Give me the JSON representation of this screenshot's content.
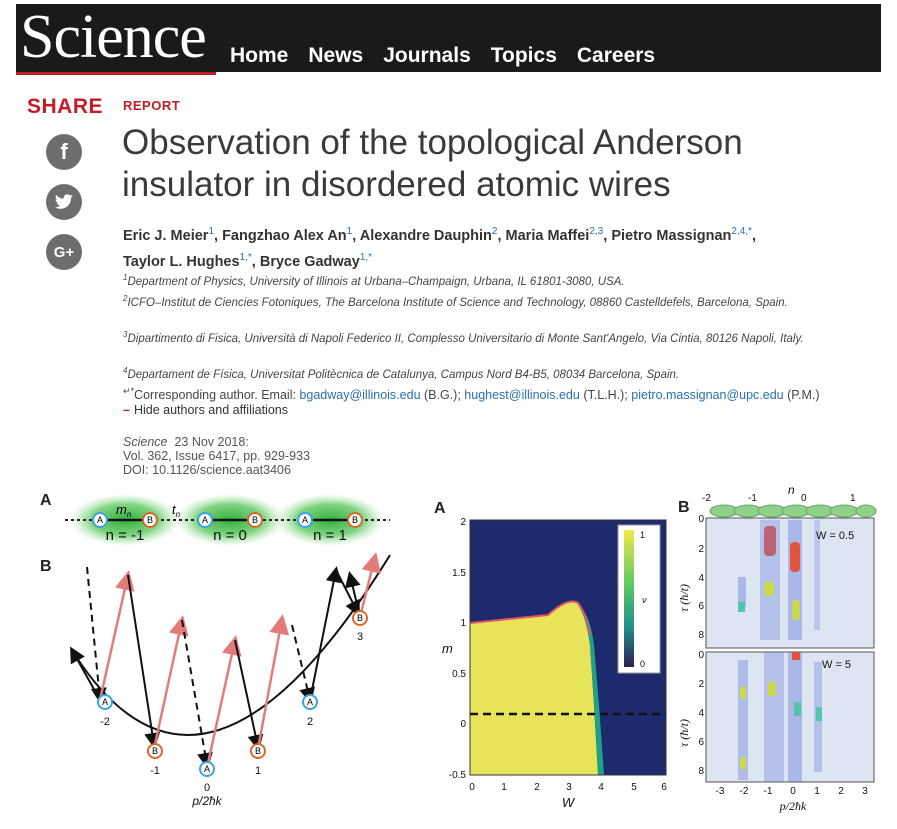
{
  "header": {
    "logo": "Science",
    "nav": [
      "Home",
      "News",
      "Journals",
      "Topics",
      "Careers"
    ]
  },
  "share": {
    "label": "SHARE",
    "icons": [
      "facebook-icon",
      "twitter-icon",
      "google-plus-icon"
    ],
    "glyphs": [
      "f",
      "t",
      "G+"
    ]
  },
  "article": {
    "type": "REPORT",
    "title": "Observation of the topological Anderson insulator in disordered atomic wires",
    "authors": [
      {
        "name": "Eric J. Meier",
        "sup": "1"
      },
      {
        "name": "Fangzhao Alex An",
        "sup": "1"
      },
      {
        "name": "Alexandre Dauphin",
        "sup": "2"
      },
      {
        "name": "Maria Maffei",
        "sup": "2,3"
      },
      {
        "name": "Pietro Massignan",
        "sup": "2,4,*"
      },
      {
        "name": "Taylor L. Hughes",
        "sup": "1,*"
      },
      {
        "name": "Bryce Gadway",
        "sup": "1,*"
      }
    ],
    "affiliations": [
      {
        "sup": "1",
        "text": "Department of Physics, University of Illinois at Urbana–Champaign, Urbana, IL 61801-3080, USA."
      },
      {
        "sup": "2",
        "text": "ICFO–Institut de Ciencies Fotoniques, The Barcelona Institute of Science and Technology, 08860 Castelldefels, Barcelona, Spain."
      },
      {
        "sup": "3",
        "text": "Dipartimento di Fisica, Università di Napoli Federico II, Complesso Universitario di Monte Sant'Angelo, Via Cintia, 80126 Napoli, Italy."
      },
      {
        "sup": "4",
        "text": "Departament de Física, Universitat Politècnica de Catalunya, Campus Nord B4-B5, 08034 Barcelona, Spain."
      }
    ],
    "corresponding": {
      "prefix": "Corresponding author. Email: ",
      "emails": [
        {
          "addr": "bgadway@illinois.edu",
          "who": "(B.G.);"
        },
        {
          "addr": "hughest@illinois.edu",
          "who": "(T.L.H.);"
        },
        {
          "addr": "pietro.massignan@upc.edu",
          "who": "(P.M.)"
        }
      ]
    },
    "hide_label": "Hide authors and affiliations",
    "citation": {
      "journal": "Science",
      "date": "23 Nov 2018:",
      "volume": "Vol. 362, Issue 6417, pp. 929-933",
      "doi": "DOI: 10.1126/science.aat3406"
    }
  },
  "figure1": {
    "panelA": "A",
    "panelB": "B",
    "mn": "m",
    "mn_sub": "n",
    "tn": "t",
    "tn_sub": "n",
    "sites": [
      "n = -1",
      "n = 0",
      "n = 1"
    ],
    "nodeA": "A",
    "nodeB": "B",
    "parabola_labels": [
      "-2",
      "-1",
      "0",
      "1",
      "2",
      "3"
    ],
    "xlabel": "p/2ħk"
  },
  "figure2": {
    "panel": "A",
    "ylabel": "m",
    "xlabel": "W",
    "xticks": [
      "0",
      "1",
      "2",
      "3",
      "4",
      "5",
      "6"
    ],
    "yticks": [
      "2",
      "1.5",
      "1",
      "0.5",
      "0",
      "-0.5"
    ],
    "colorbar_ticks": [
      "1",
      "0"
    ],
    "colorbar_label": "ν",
    "colors": {
      "low": "#1e2a6e",
      "high": "#e8e45a",
      "mid": "#1fa187",
      "boundary": "#e0556a"
    }
  },
  "figure3": {
    "panel": "B",
    "top_n": "n",
    "top_ticks": [
      "-2",
      "-1",
      "0",
      "1"
    ],
    "sub_label": "A B",
    "w1": "W = 0.5",
    "w2": "W =  5",
    "ylabel": "τ (ħ/t)",
    "yticks_top": [
      "0",
      "2",
      "4",
      "6",
      "8"
    ],
    "yticks_bot": [
      "0",
      "2",
      "4",
      "6",
      "8"
    ],
    "xticks": [
      "-3",
      "-2",
      "-1",
      "0",
      "1",
      "2",
      "3"
    ],
    "xlabel": "p/2ħk"
  }
}
